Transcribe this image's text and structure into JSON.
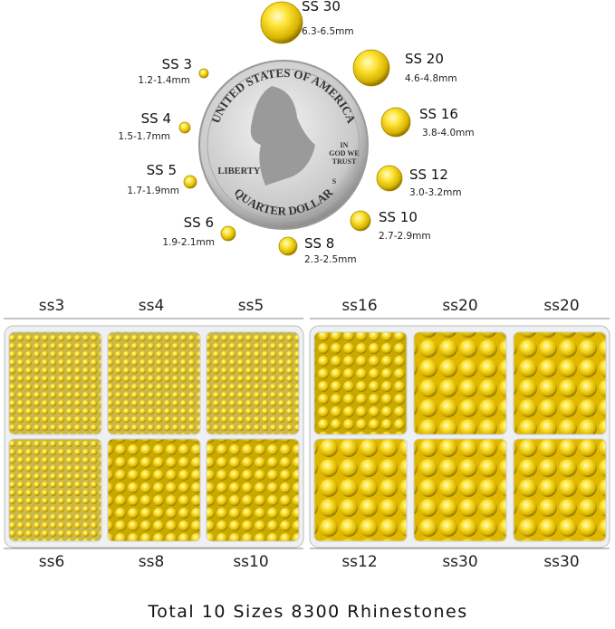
{
  "sizes": [
    {
      "label": "SS 30",
      "mm": "6.3-6.5mm"
    },
    {
      "label": "SS 20",
      "mm": "4.6-4.8mm"
    },
    {
      "label": "SS 16",
      "mm": "3.8-4.0mm"
    },
    {
      "label": "SS 12",
      "mm": "3.0-3.2mm"
    },
    {
      "label": "SS 10",
      "mm": "2.7-2.9mm"
    },
    {
      "label": "SS 8",
      "mm": "2.3-2.5mm"
    },
    {
      "label": "SS 6",
      "mm": "1.9-2.1mm"
    },
    {
      "label": "SS 5",
      "mm": "1.7-1.9mm"
    },
    {
      "label": "SS 4",
      "mm": "1.5-1.7mm"
    },
    {
      "label": "SS 3",
      "mm": "1.2-1.4mm"
    }
  ],
  "coin": {
    "top": "UNITED STATES OF AMERICA",
    "liberty": "LIBERTY",
    "motto": [
      "IN",
      "GOD WE",
      "TRUST"
    ],
    "mint": "S",
    "bottom": "QUARTER DOLLAR"
  },
  "box_labels": {
    "top": [
      "ss3",
      "ss4",
      "ss5",
      "ss16",
      "ss20",
      "ss20"
    ],
    "bottom": [
      "ss6",
      "ss8",
      "ss10",
      "ss12",
      "ss30",
      "ss30"
    ]
  },
  "footer": "Total 10 Sizes 8300 Rhinestones"
}
